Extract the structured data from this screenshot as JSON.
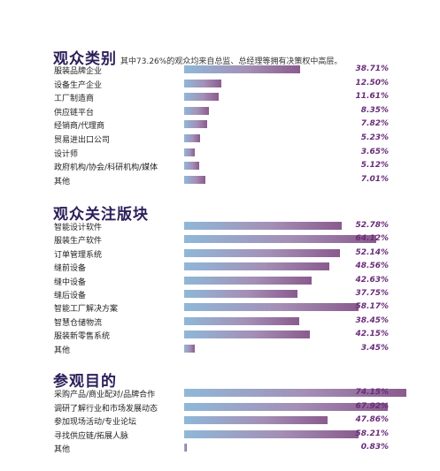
{
  "sections": [
    {
      "title": "观众类别",
      "subtitle": "其中73.26%的观众均来自总监、总经理等拥有决策权中高层。",
      "items": [
        {
          "label": "服装品牌企业",
          "value": 38.71,
          "display": "38.71%"
        },
        {
          "label": "设备生产企业",
          "value": 12.5,
          "display": "12.50%"
        },
        {
          "label": "工厂制造商",
          "value": 11.61,
          "display": "11.61%"
        },
        {
          "label": "供应链平台",
          "value": 8.35,
          "display": "8.35%"
        },
        {
          "label": "经销商/代理商",
          "value": 7.82,
          "display": "7.82%"
        },
        {
          "label": "贸易进出口公司",
          "value": 5.23,
          "display": "5.23%"
        },
        {
          "label": "设计师",
          "value": 3.65,
          "display": "3.65%"
        },
        {
          "label": "政府机构/协会/科研机构/媒体",
          "value": 5.12,
          "display": "5.12%"
        },
        {
          "label": "其他",
          "value": 7.01,
          "display": "7.01%"
        }
      ]
    },
    {
      "title": "观众关注版块",
      "subtitle": "",
      "items": [
        {
          "label": "智能设计软件",
          "value": 52.78,
          "display": "52.78%"
        },
        {
          "label": "服装生产软件",
          "value": 64.12,
          "display": "64.12%"
        },
        {
          "label": "订单管理系统",
          "value": 52.14,
          "display": "52.14%"
        },
        {
          "label": "缝前设备",
          "value": 48.56,
          "display": "48.56%"
        },
        {
          "label": "缝中设备",
          "value": 42.63,
          "display": "42.63%"
        },
        {
          "label": "缝后设备",
          "value": 37.75,
          "display": "37.75%"
        },
        {
          "label": "智能工厂解决方案",
          "value": 58.17,
          "display": "58.17%"
        },
        {
          "label": "智慧仓储物流",
          "value": 38.45,
          "display": "38.45%"
        },
        {
          "label": "服装新零售系统",
          "value": 42.15,
          "display": "42.15%"
        },
        {
          "label": "其他",
          "value": 3.45,
          "display": "3.45%"
        }
      ]
    },
    {
      "title": "参观目的",
      "subtitle": "",
      "items": [
        {
          "label": "采购产品/商业配对/品牌合作",
          "value": 74.15,
          "display": "74.15%"
        },
        {
          "label": "调研了解行业和市场发展动态",
          "value": 67.92,
          "display": "67.92%"
        },
        {
          "label": "参加现场活动/专业论坛",
          "value": 47.86,
          "display": "47.86%"
        },
        {
          "label": "寻找供应链/拓展人脉",
          "value": 58.21,
          "display": "58.21%"
        },
        {
          "label": "其他",
          "value": 0.83,
          "display": "0.83%"
        }
      ]
    }
  ],
  "chart_data": [
    {
      "type": "bar",
      "orientation": "horizontal",
      "title": "观众类别",
      "subtitle": "其中73.26%的观众均来自总监、总经理等拥有决策权中高层。",
      "categories": [
        "服装品牌企业",
        "设备生产企业",
        "工厂制造商",
        "供应链平台",
        "经销商/代理商",
        "贸易进出口公司",
        "设计师",
        "政府机构/协会/科研机构/媒体",
        "其他"
      ],
      "values": [
        38.71,
        12.5,
        11.61,
        8.35,
        7.82,
        5.23,
        3.65,
        5.12,
        7.01
      ],
      "unit": "%"
    },
    {
      "type": "bar",
      "orientation": "horizontal",
      "title": "观众关注版块",
      "categories": [
        "智能设计软件",
        "服装生产软件",
        "订单管理系统",
        "缝前设备",
        "缝中设备",
        "缝后设备",
        "智能工厂解决方案",
        "智慧仓储物流",
        "服装新零售系统",
        "其他"
      ],
      "values": [
        52.78,
        64.12,
        52.14,
        48.56,
        42.63,
        37.75,
        58.17,
        38.45,
        42.15,
        3.45
      ],
      "unit": "%"
    },
    {
      "type": "bar",
      "orientation": "horizontal",
      "title": "参观目的",
      "categories": [
        "采购产品/商业配对/品牌合作",
        "调研了解行业和市场发展动态",
        "参加现场活动/专业论坛",
        "寻找供应链/拓展人脉",
        "其他"
      ],
      "values": [
        74.15,
        67.92,
        47.86,
        58.21,
        0.83
      ],
      "unit": "%"
    }
  ]
}
